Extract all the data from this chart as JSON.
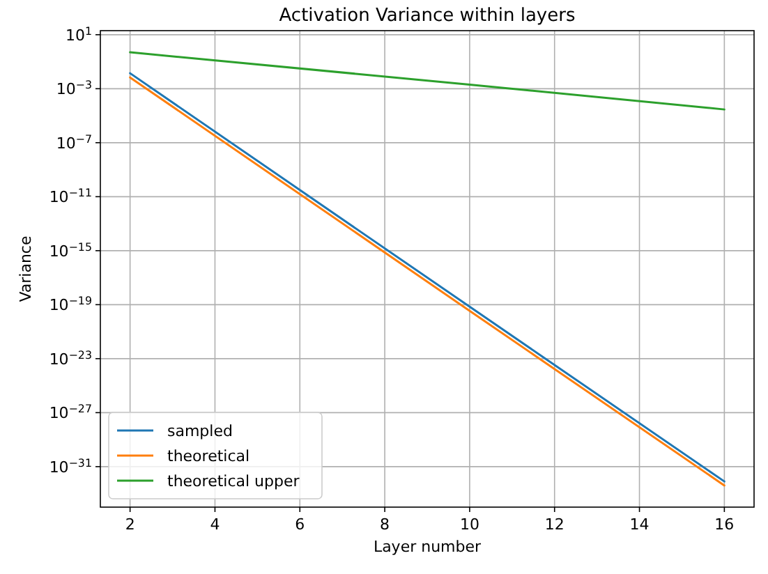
{
  "chart_data": {
    "type": "line",
    "title": "Activation Variance within layers",
    "xlabel": "Layer number",
    "ylabel": "Variance",
    "log": "y",
    "grid": true,
    "legend": "bottom left",
    "xlim": [
      1.3,
      16.7
    ],
    "xticks": [
      2,
      4,
      6,
      8,
      10,
      12,
      14,
      16
    ],
    "ylim": [
      1e-34,
      20
    ],
    "yticks": [
      {
        "value": 10,
        "label": "10$^{1}$"
      },
      {
        "value": 0.001,
        "label": "10$^{−3}$"
      },
      {
        "value": 1e-07,
        "label": "10$^{−7}$"
      },
      {
        "value": 1e-11,
        "label": "10$^{−11}$"
      },
      {
        "value": 1e-15,
        "label": "10$^{−15}$"
      },
      {
        "value": 1e-19,
        "label": "10$^{−19}$"
      },
      {
        "value": 1e-23,
        "label": "10$^{−23}$"
      },
      {
        "value": 1e-27,
        "label": "10$^{−27}$"
      },
      {
        "value": 1e-31,
        "label": "10$^{−31}$"
      }
    ],
    "series": [
      {
        "name": "sampled",
        "color": "#1f77b4",
        "x": [
          2,
          10,
          16
        ],
        "values": [
          0.014,
          7e-20,
          8e-33
        ]
      },
      {
        "name": "theoretical",
        "color": "#ff7f0e",
        "x": [
          2,
          10,
          16
        ],
        "values": [
          0.0068,
          3.5e-20,
          4e-33
        ]
      },
      {
        "name": "theoretical upper",
        "color": "#2ca02c",
        "x": [
          2,
          10,
          16
        ],
        "values": [
          0.5,
          0.002,
          2.9e-05
        ]
      }
    ]
  }
}
